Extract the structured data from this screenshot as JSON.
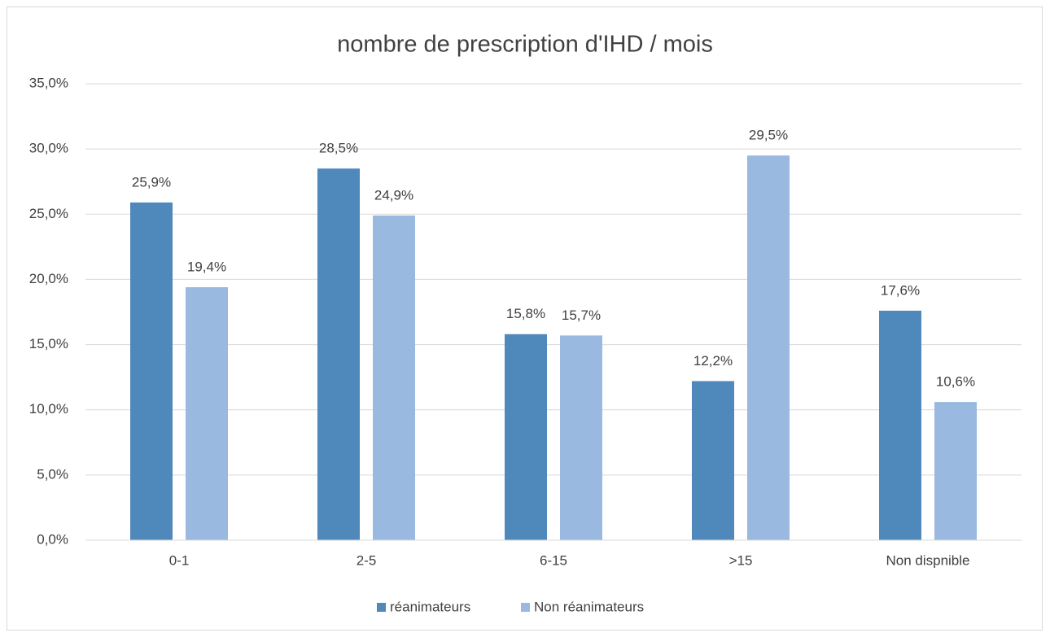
{
  "chart_data": {
    "type": "bar",
    "title": "nombre de prescription d'IHD / mois",
    "categories": [
      "0-1",
      "2-5",
      "6-15",
      ">15",
      "Non dispnible"
    ],
    "series": [
      {
        "name": "réanimateurs",
        "color": "#4f88bb",
        "values": [
          25.9,
          28.5,
          15.8,
          12.2,
          17.6
        ],
        "value_labels": [
          "25,9%",
          "28,5%",
          "15,8%",
          "12,2%",
          "17,6%"
        ]
      },
      {
        "name": "Non réanimateurs",
        "color": "#99b9e0",
        "values": [
          19.4,
          24.9,
          15.7,
          29.5,
          10.6
        ],
        "value_labels": [
          "19,4%",
          "24,9%",
          "15,7%",
          "29,5%",
          "10,6%"
        ]
      }
    ],
    "ylim": [
      0,
      35
    ],
    "yticks": [
      {
        "value": 0,
        "label": "0,0%"
      },
      {
        "value": 5,
        "label": "5,0%"
      },
      {
        "value": 10,
        "label": "10,0%"
      },
      {
        "value": 15,
        "label": "15,0%"
      },
      {
        "value": 20,
        "label": "20,0%"
      },
      {
        "value": 25,
        "label": "25,0%"
      },
      {
        "value": 30,
        "label": "30,0%"
      },
      {
        "value": 35,
        "label": "35,0%"
      }
    ],
    "grid": true,
    "legend": "bottom"
  }
}
